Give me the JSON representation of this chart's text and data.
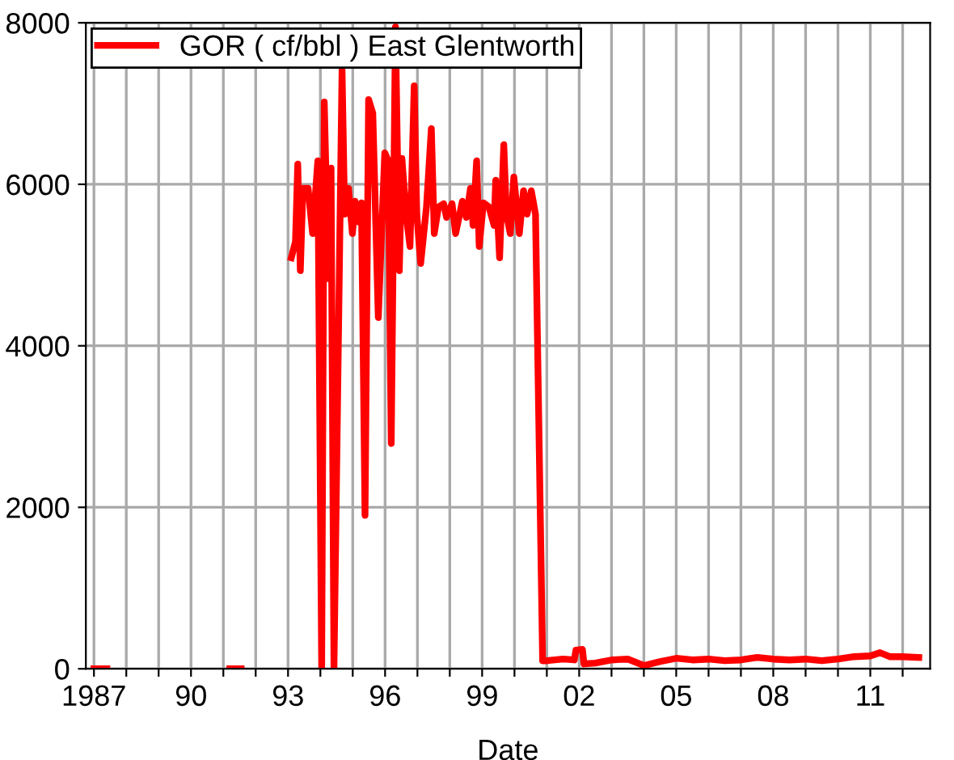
{
  "chart_data": {
    "type": "line",
    "xlabel": "Date",
    "legend": "top left",
    "grid": true,
    "marker": "none",
    "line_style": "solid",
    "xlim": [
      1986.75,
      2012.85
    ],
    "ylim": [
      0,
      8000
    ],
    "yticks": [
      0,
      2000,
      4000,
      6000,
      8000
    ],
    "xticks": [
      {
        "value": 1987,
        "label": "1987"
      },
      {
        "value": 1988,
        "label": null
      },
      {
        "value": 1989,
        "label": null
      },
      {
        "value": 1990,
        "label": "90"
      },
      {
        "value": 1991,
        "label": null
      },
      {
        "value": 1992,
        "label": null
      },
      {
        "value": 1993,
        "label": "93"
      },
      {
        "value": 1994,
        "label": null
      },
      {
        "value": 1995,
        "label": null
      },
      {
        "value": 1996,
        "label": "96"
      },
      {
        "value": 1997,
        "label": null
      },
      {
        "value": 1998,
        "label": null
      },
      {
        "value": 1999,
        "label": "99"
      },
      {
        "value": 2000,
        "label": null
      },
      {
        "value": 2001,
        "label": null
      },
      {
        "value": 2002,
        "label": "02"
      },
      {
        "value": 2003,
        "label": null
      },
      {
        "value": 2004,
        "label": null
      },
      {
        "value": 2005,
        "label": "05"
      },
      {
        "value": 2006,
        "label": null
      },
      {
        "value": 2007,
        "label": null
      },
      {
        "value": 2008,
        "label": "08"
      },
      {
        "value": 2009,
        "label": null
      },
      {
        "value": 2010,
        "label": null
      },
      {
        "value": 2011,
        "label": "11"
      },
      {
        "value": 2012,
        "label": null
      }
    ],
    "series": [
      {
        "name": "GOR ( cf/bbl ) East Glentworth",
        "color": "#ff0000",
        "x": [
          1987.0,
          1987.4,
          1987.5,
          1991.2,
          1991.55,
          1991.6,
          1993.1,
          1993.23,
          1993.3,
          1993.38,
          1993.46,
          1993.62,
          1993.76,
          1993.92,
          1994.04,
          1994.12,
          1994.25,
          1994.33,
          1994.42,
          1994.67,
          1994.75,
          1994.87,
          1994.99,
          1995.07,
          1995.19,
          1995.27,
          1995.38,
          1995.49,
          1995.62,
          1995.79,
          1995.99,
          1996.1,
          1996.19,
          1996.32,
          1996.44,
          1996.52,
          1996.65,
          1996.77,
          1996.9,
          1996.98,
          1997.1,
          1997.28,
          1997.43,
          1997.52,
          1997.65,
          1997.81,
          1997.9,
          1998.07,
          1998.18,
          1998.39,
          1998.51,
          1998.64,
          1998.72,
          1998.83,
          1998.91,
          1999.04,
          1999.21,
          1999.37,
          1999.42,
          1999.54,
          1999.67,
          1999.75,
          1999.87,
          1999.98,
          2000.15,
          2000.28,
          2000.39,
          2000.52,
          2000.65,
          2000.87,
          2001.0,
          2001.5,
          2001.85,
          2001.9,
          2002.1,
          2002.15,
          2002.5,
          2003.0,
          2003.5,
          2004.0,
          2004.5,
          2005.0,
          2005.5,
          2006.0,
          2006.5,
          2007.0,
          2007.5,
          2008.0,
          2008.5,
          2009.0,
          2009.5,
          2010.0,
          2010.5,
          2011.0,
          2011.3,
          2011.6,
          2012.0,
          2012.5
        ],
        "values": [
          0,
          0,
          null,
          0,
          0,
          null,
          5090,
          5290,
          6250,
          4930,
          5950,
          5950,
          5390,
          6290,
          0,
          7020,
          4830,
          6200,
          0,
          7420,
          5630,
          5950,
          5390,
          5790,
          5530,
          5770,
          1900,
          7050,
          6880,
          4350,
          6390,
          6290,
          2790,
          7950,
          4930,
          6320,
          5630,
          5230,
          7220,
          5630,
          5020,
          5720,
          6690,
          5390,
          5720,
          5760,
          5590,
          5760,
          5390,
          5790,
          5590,
          5950,
          5490,
          6290,
          5230,
          5770,
          5720,
          5490,
          6050,
          5090,
          6490,
          5630,
          5390,
          6090,
          5390,
          5920,
          5630,
          5920,
          5630,
          100,
          100,
          120,
          110,
          230,
          240,
          60,
          70,
          110,
          120,
          40,
          90,
          130,
          110,
          120,
          100,
          110,
          140,
          120,
          110,
          120,
          100,
          120,
          150,
          160,
          200,
          150,
          150,
          140
        ]
      }
    ]
  }
}
